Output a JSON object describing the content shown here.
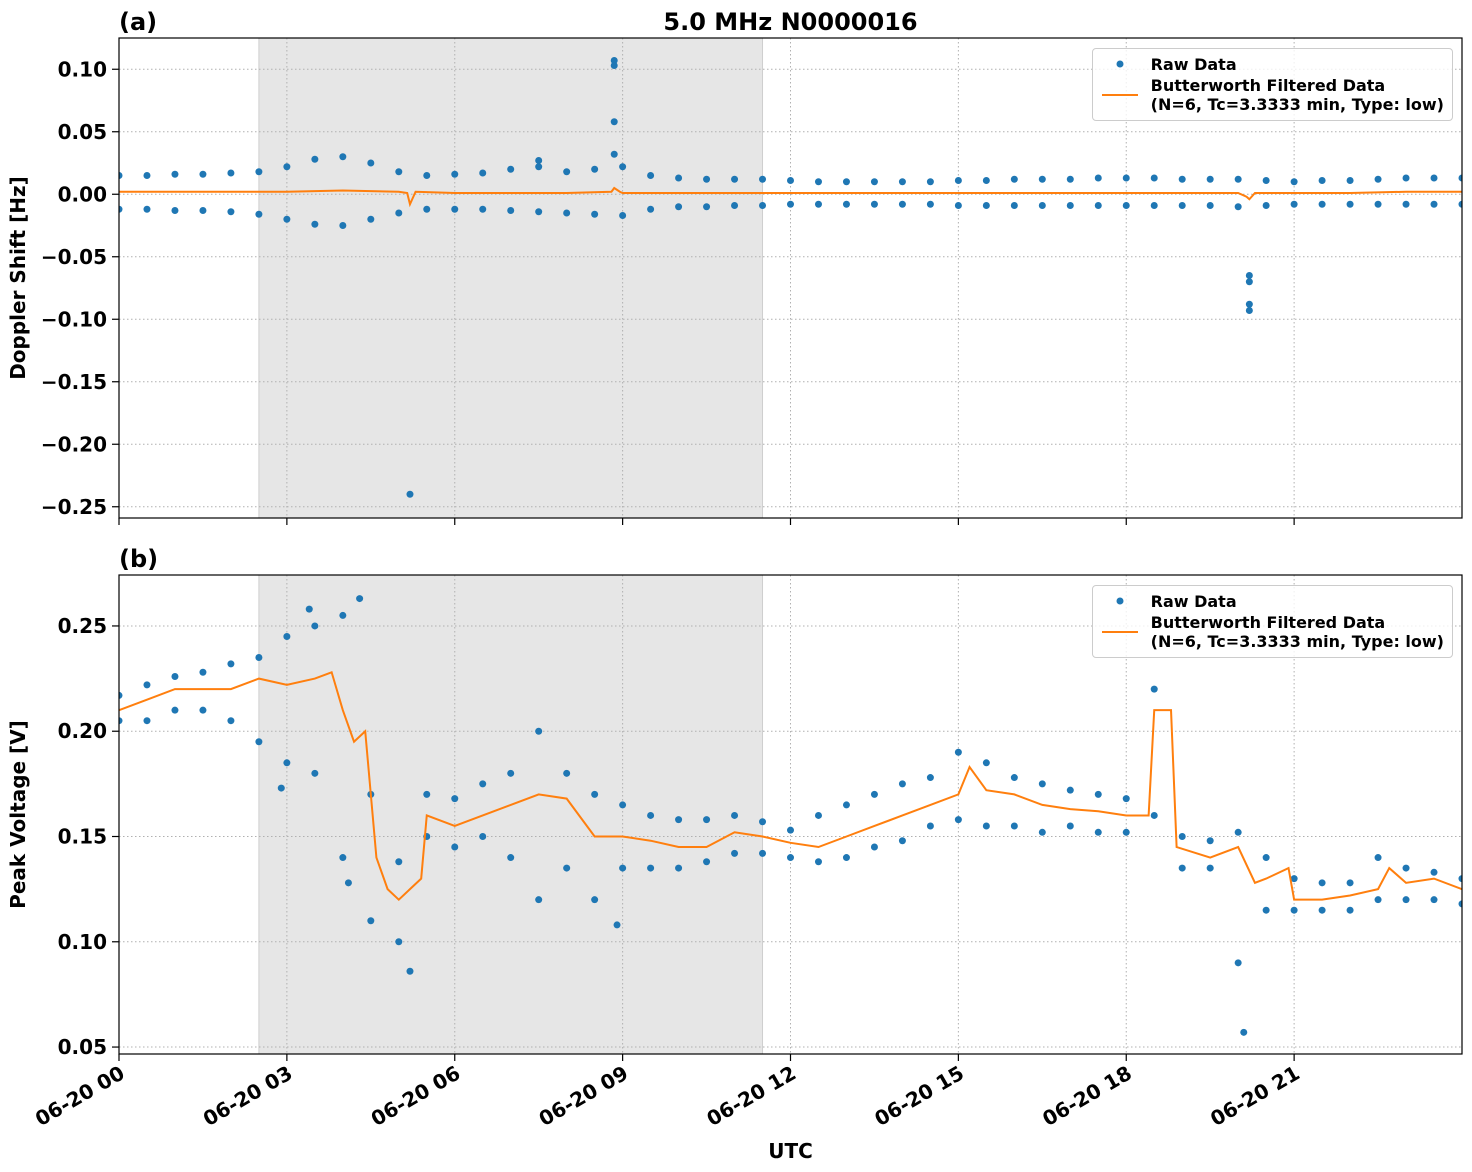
{
  "chart_data": [
    {
      "type": "scatter",
      "title": "5.0 MHz N0000016",
      "panel_label": "(a)",
      "ylabel": "Doppler Shift [Hz]",
      "xlim": [
        0,
        24
      ],
      "xticks": [
        0,
        3,
        6,
        9,
        12,
        15,
        18,
        21
      ],
      "ylim": [
        -0.259,
        0.125
      ],
      "yticks": [
        {
          "value": -0.25,
          "label": "−0.25"
        },
        {
          "value": -0.2,
          "label": "−0.20"
        },
        {
          "value": -0.15,
          "label": "−0.15"
        },
        {
          "value": -0.1,
          "label": "−0.10"
        },
        {
          "value": -0.05,
          "label": "−0.05"
        },
        {
          "value": 0,
          "label": "0.00"
        },
        0.05,
        {
          "value": 0.1,
          "label": "0.10"
        }
      ],
      "grid": true,
      "legend": "upper right",
      "shade": [
        2.5,
        11.5
      ],
      "series": [
        {
          "name": "Raw Data",
          "color": "#1f77b4",
          "marker": "point",
          "x": [
            0,
            0.5,
            1,
            1.5,
            2,
            2.5,
            3,
            3.5,
            4,
            4.5,
            5,
            5.5,
            6,
            6.5,
            7,
            7.5,
            8,
            8.5,
            9,
            9.5,
            10,
            10.5,
            11,
            11.5,
            12,
            12.5,
            13,
            13.5,
            14,
            14.5,
            15,
            15.5,
            16,
            16.5,
            17,
            17.5,
            18,
            18.5,
            19,
            19.5,
            20,
            20.5,
            21,
            21.5,
            22,
            22.5,
            23,
            23.5,
            24,
            0,
            0.5,
            1,
            1.5,
            2,
            2.5,
            3,
            3.5,
            4,
            4.5,
            5,
            5.5,
            6,
            6.5,
            7,
            7.5,
            8,
            8.5,
            9,
            9.5,
            10,
            10.5,
            11,
            11.5,
            12,
            12.5,
            13,
            13.5,
            14,
            14.5,
            15,
            15.5,
            16,
            16.5,
            17,
            17.5,
            18,
            18.5,
            19,
            19.5,
            20,
            20.5,
            21,
            21.5,
            22,
            22.5,
            23,
            23.5,
            24,
            8.85,
            8.85,
            8.85,
            8.85,
            5.2,
            20.2,
            20.2,
            20.2,
            20.2,
            7.5
          ],
          "values": [
            0.015,
            0.015,
            0.016,
            0.016,
            0.017,
            0.018,
            0.022,
            0.028,
            0.03,
            0.025,
            0.018,
            0.015,
            0.016,
            0.017,
            0.02,
            0.022,
            0.018,
            0.02,
            0.022,
            0.015,
            0.013,
            0.012,
            0.012,
            0.012,
            0.011,
            0.01,
            0.01,
            0.01,
            0.01,
            0.01,
            0.011,
            0.011,
            0.012,
            0.012,
            0.012,
            0.013,
            0.013,
            0.013,
            0.012,
            0.012,
            0.012,
            0.011,
            0.01,
            0.011,
            0.011,
            0.012,
            0.013,
            0.013,
            0.013,
            -0.012,
            -0.012,
            -0.013,
            -0.013,
            -0.014,
            -0.016,
            -0.02,
            -0.024,
            -0.025,
            -0.02,
            -0.015,
            -0.012,
            -0.012,
            -0.012,
            -0.013,
            -0.014,
            -0.015,
            -0.016,
            -0.017,
            -0.012,
            -0.01,
            -0.01,
            -0.009,
            -0.009,
            -0.008,
            -0.008,
            -0.008,
            -0.008,
            -0.008,
            -0.008,
            -0.009,
            -0.009,
            -0.009,
            -0.009,
            -0.009,
            -0.009,
            -0.009,
            -0.009,
            -0.009,
            -0.009,
            -0.01,
            -0.009,
            -0.008,
            -0.008,
            -0.008,
            -0.008,
            -0.008,
            -0.008,
            -0.008,
            0.107,
            0.103,
            0.058,
            0.032,
            -0.24,
            -0.065,
            -0.07,
            -0.088,
            -0.093,
            0.027
          ]
        },
        {
          "name": "Butterworth Filtered Data\n(N=6, Tc=3.3333 min, Type: low)",
          "color": "#ff7f0e",
          "marker": "line",
          "x": [
            0,
            1,
            2,
            3,
            4,
            5,
            5.15,
            5.2,
            5.3,
            6,
            7,
            8,
            8.8,
            8.85,
            8.95,
            9,
            10,
            11,
            12,
            13,
            14,
            15,
            16,
            17,
            18,
            19,
            20,
            20.15,
            20.2,
            20.3,
            21,
            22,
            23,
            24
          ],
          "values": [
            0.002,
            0.002,
            0.002,
            0.002,
            0.003,
            0.002,
            0.001,
            -0.008,
            0.002,
            0.001,
            0.001,
            0.001,
            0.002,
            0.005,
            0.002,
            0.001,
            0.001,
            0.001,
            0.001,
            0.001,
            0.001,
            0.001,
            0.001,
            0.001,
            0.001,
            0.001,
            0.001,
            -0.002,
            -0.004,
            0.001,
            0.001,
            0.001,
            0.002,
            0.002
          ]
        }
      ]
    },
    {
      "type": "scatter",
      "panel_label": "(b)",
      "ylabel": "Peak Voltage [V]",
      "xlabel": "UTC",
      "xlim": [
        0,
        24
      ],
      "xticks": [
        {
          "value": 0,
          "label": "06-20 00"
        },
        {
          "value": 3,
          "label": "06-20 03"
        },
        {
          "value": 6,
          "label": "06-20 06"
        },
        {
          "value": 9,
          "label": "06-20 09"
        },
        {
          "value": 12,
          "label": "06-20 12"
        },
        {
          "value": 15,
          "label": "06-20 15"
        },
        {
          "value": 18,
          "label": "06-20 18"
        },
        {
          "value": 21,
          "label": "06-20 21"
        }
      ],
      "ylim": [
        0.0467,
        0.2742
      ],
      "yticks": [
        0.05,
        {
          "value": 0.1,
          "label": "0.10"
        },
        0.15,
        {
          "value": 0.2,
          "label": "0.20"
        },
        0.25
      ],
      "grid": true,
      "legend": "upper right",
      "shade": [
        2.5,
        11.5
      ],
      "series": [
        {
          "name": "Raw Data",
          "color": "#1f77b4",
          "marker": "point",
          "x": [
            0,
            0.5,
            1,
            1.5,
            2,
            2.5,
            3,
            3.5,
            4,
            4.5,
            5,
            5.5,
            6,
            6.5,
            7,
            7.5,
            8,
            8.5,
            9,
            9.5,
            10,
            10.5,
            11,
            11.5,
            12,
            12.5,
            13,
            13.5,
            14,
            14.5,
            15,
            15.5,
            16,
            16.5,
            17,
            17.5,
            18,
            18.5,
            19,
            19.5,
            20,
            20.5,
            21,
            21.5,
            22,
            22.5,
            23,
            23.5,
            24,
            0,
            0.5,
            1,
            1.5,
            2,
            2.5,
            3,
            3.5,
            4,
            4.5,
            5,
            5.5,
            6,
            6.5,
            7,
            7.5,
            8,
            8.5,
            9,
            9.5,
            10,
            10.5,
            11,
            11.5,
            12,
            12.5,
            13,
            13.5,
            14,
            14.5,
            15,
            15.5,
            16,
            16.5,
            17,
            17.5,
            18,
            18.5,
            19,
            19.5,
            20,
            20.5,
            21,
            21.5,
            22,
            22.5,
            23,
            23.5,
            24,
            3.4,
            4.3,
            5.2,
            8.9,
            20.1,
            2.9,
            4.1
          ],
          "values": [
            0.217,
            0.222,
            0.226,
            0.228,
            0.232,
            0.235,
            0.245,
            0.25,
            0.255,
            0.17,
            0.138,
            0.17,
            0.168,
            0.175,
            0.18,
            0.2,
            0.18,
            0.17,
            0.165,
            0.16,
            0.158,
            0.158,
            0.16,
            0.157,
            0.153,
            0.16,
            0.165,
            0.17,
            0.175,
            0.178,
            0.19,
            0.185,
            0.178,
            0.175,
            0.172,
            0.17,
            0.168,
            0.22,
            0.15,
            0.148,
            0.152,
            0.14,
            0.13,
            0.128,
            0.128,
            0.14,
            0.135,
            0.133,
            0.13,
            0.205,
            0.205,
            0.21,
            0.21,
            0.205,
            0.195,
            0.185,
            0.18,
            0.14,
            0.11,
            0.1,
            0.15,
            0.145,
            0.15,
            0.14,
            0.12,
            0.135,
            0.12,
            0.135,
            0.135,
            0.135,
            0.138,
            0.142,
            0.142,
            0.14,
            0.138,
            0.14,
            0.145,
            0.148,
            0.155,
            0.158,
            0.155,
            0.155,
            0.152,
            0.155,
            0.152,
            0.152,
            0.16,
            0.135,
            0.135,
            0.09,
            0.115,
            0.115,
            0.115,
            0.115,
            0.12,
            0.12,
            0.12,
            0.118,
            0.258,
            0.263,
            0.086,
            0.108,
            0.057,
            0.173,
            0.128
          ]
        },
        {
          "name": "Butterworth Filtered Data\n(N=6, Tc=3.3333 min, Type: low)",
          "color": "#ff7f0e",
          "marker": "line",
          "x": [
            0,
            0.5,
            1,
            1.5,
            2,
            2.5,
            3,
            3.5,
            3.8,
            4,
            4.2,
            4.4,
            4.6,
            4.8,
            5,
            5.2,
            5.4,
            5.5,
            6,
            6.5,
            7,
            7.5,
            8,
            8.5,
            9,
            9.5,
            10,
            10.5,
            11,
            11.5,
            12,
            12.5,
            13,
            13.5,
            14,
            14.5,
            15,
            15.2,
            15.5,
            16,
            16.5,
            17,
            17.5,
            18,
            18.4,
            18.5,
            18.8,
            18.9,
            19.5,
            20,
            20.3,
            20.5,
            20.9,
            21,
            21.5,
            22,
            22.5,
            22.7,
            23,
            23.5,
            24
          ],
          "values": [
            0.21,
            0.215,
            0.22,
            0.22,
            0.22,
            0.225,
            0.222,
            0.225,
            0.228,
            0.21,
            0.195,
            0.2,
            0.14,
            0.125,
            0.12,
            0.125,
            0.13,
            0.16,
            0.155,
            0.16,
            0.165,
            0.17,
            0.168,
            0.15,
            0.15,
            0.148,
            0.145,
            0.145,
            0.152,
            0.15,
            0.147,
            0.145,
            0.15,
            0.155,
            0.16,
            0.165,
            0.17,
            0.183,
            0.172,
            0.17,
            0.165,
            0.163,
            0.162,
            0.16,
            0.16,
            0.21,
            0.21,
            0.145,
            0.14,
            0.145,
            0.128,
            0.13,
            0.135,
            0.12,
            0.12,
            0.122,
            0.125,
            0.135,
            0.128,
            0.13,
            0.125
          ]
        }
      ]
    }
  ]
}
